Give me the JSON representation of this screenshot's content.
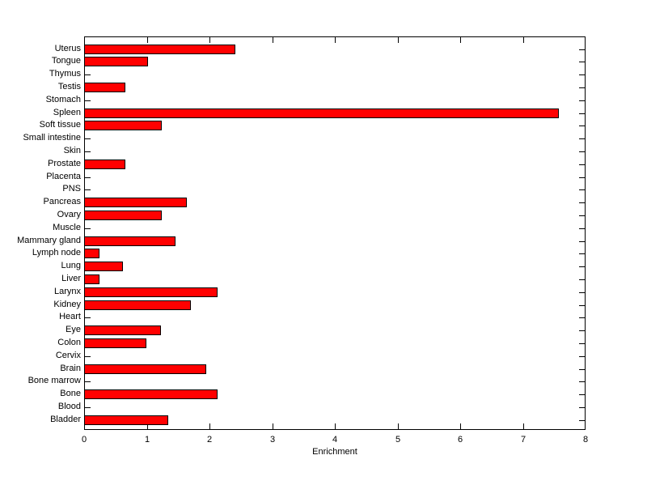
{
  "figure": {
    "background": "#FFFFFF"
  },
  "chart_data": {
    "type": "bar",
    "orientation": "horizontal",
    "title": "",
    "xlabel": "Enrichment",
    "ylabel": "",
    "xlim": [
      0,
      8
    ],
    "xticks": [
      0,
      1,
      2,
      3,
      4,
      5,
      6,
      7,
      8
    ],
    "grid": false,
    "legend": null,
    "order": "top-to-bottom",
    "categories": [
      "Uterus",
      "Tongue",
      "Thymus",
      "Testis",
      "Stomach",
      "Spleen",
      "Soft tissue",
      "Small intestine",
      "Skin",
      "Prostate",
      "Placenta",
      "PNS",
      "Pancreas",
      "Ovary",
      "Muscle",
      "Mammary gland",
      "Lymph node",
      "Lung",
      "Liver",
      "Larynx",
      "Kidney",
      "Heart",
      "Eye",
      "Colon",
      "Cervix",
      "Brain",
      "Bone marrow",
      "Bone",
      "Blood",
      "Bladder"
    ],
    "values": [
      2.4,
      1.01,
      0,
      0.65,
      0,
      7.56,
      1.23,
      0,
      0,
      0.65,
      0,
      0,
      1.62,
      1.22,
      0,
      1.45,
      0.23,
      0.6,
      0.23,
      2.11,
      1.69,
      0,
      1.21,
      0.98,
      0,
      1.93,
      0,
      2.12,
      0,
      1.33
    ],
    "bar_color": "#FF0000",
    "bar_edge_color": "#000000",
    "axis_color": "#000000",
    "tick_direction": "in",
    "box": true
  }
}
